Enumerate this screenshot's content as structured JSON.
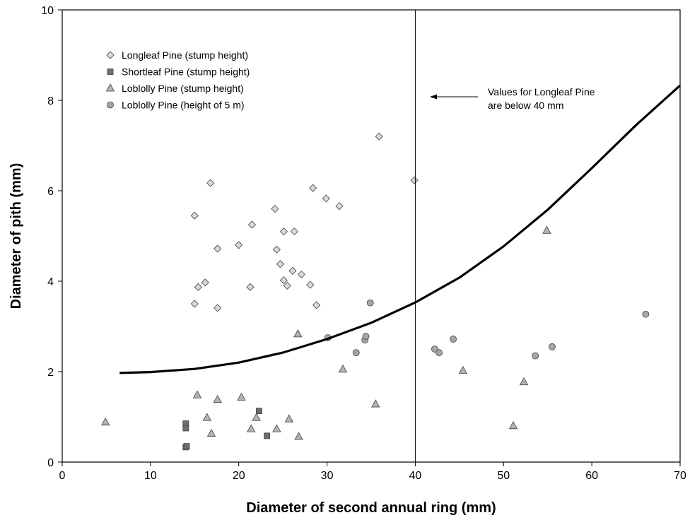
{
  "chart_data": {
    "type": "scatter",
    "title": "",
    "xlabel": "Diameter of second annual ring (mm)",
    "ylabel": "Diameter of pith (mm)",
    "xlim": [
      0,
      70
    ],
    "ylim": [
      0,
      10
    ],
    "xticks": [
      0,
      10,
      20,
      30,
      40,
      50,
      60,
      70
    ],
    "yticks": [
      0,
      2,
      4,
      6,
      8,
      10
    ],
    "grid": false,
    "legend_position": "top-left",
    "series": [
      {
        "name": "Longleaf Pine (stump height)",
        "marker": "diamond",
        "color": "#d9d9d9",
        "points": [
          [
            15,
            5.45
          ],
          [
            16.8,
            6.17
          ],
          [
            15.4,
            3.87
          ],
          [
            16.2,
            3.97
          ],
          [
            15,
            3.5
          ],
          [
            17.6,
            4.72
          ],
          [
            17.6,
            3.41
          ],
          [
            20,
            4.8
          ],
          [
            21.3,
            3.87
          ],
          [
            21.5,
            5.25
          ],
          [
            24.1,
            5.6
          ],
          [
            24.3,
            4.7
          ],
          [
            24.7,
            4.38
          ],
          [
            25.1,
            5.1
          ],
          [
            25.1,
            4.02
          ],
          [
            25.5,
            3.9
          ],
          [
            26.1,
            4.23
          ],
          [
            26.3,
            5.1
          ],
          [
            27.1,
            4.15
          ],
          [
            28.1,
            3.92
          ],
          [
            28.4,
            6.06
          ],
          [
            28.8,
            3.47
          ],
          [
            29.9,
            5.83
          ],
          [
            31.4,
            5.66
          ],
          [
            35.9,
            7.2
          ],
          [
            39.9,
            6.23
          ]
        ]
      },
      {
        "name": "Shortleaf Pine (stump height)",
        "marker": "square",
        "color": "#6e6e6e",
        "points": [
          [
            14,
            0.85
          ],
          [
            14,
            0.75
          ],
          [
            14,
            0.33
          ],
          [
            14.1,
            0.35
          ],
          [
            22.3,
            1.13
          ],
          [
            23.2,
            0.58
          ]
        ]
      },
      {
        "name": "Loblolly Pine (stump height)",
        "marker": "triangle",
        "color": "#b3b3b3",
        "points": [
          [
            4.9,
            0.88
          ],
          [
            15.3,
            1.48
          ],
          [
            16.4,
            0.98
          ],
          [
            16.9,
            0.63
          ],
          [
            17.6,
            1.38
          ],
          [
            20.3,
            1.43
          ],
          [
            21.4,
            0.73
          ],
          [
            22,
            0.98
          ],
          [
            24.3,
            0.73
          ],
          [
            25.7,
            0.95
          ],
          [
            26.7,
            2.83
          ],
          [
            26.8,
            0.56
          ],
          [
            31.8,
            2.05
          ],
          [
            35.5,
            1.28
          ],
          [
            45.4,
            2.02
          ],
          [
            51.1,
            0.8
          ],
          [
            52.3,
            1.77
          ],
          [
            54.9,
            5.12
          ]
        ]
      },
      {
        "name": "Loblolly Pine (height of 5 m)",
        "marker": "circle",
        "color": "#a6a6a6",
        "points": [
          [
            30.1,
            2.75
          ],
          [
            33.3,
            2.42
          ],
          [
            34.3,
            2.7
          ],
          [
            34.4,
            2.78
          ],
          [
            34.9,
            3.52
          ],
          [
            42.2,
            2.5
          ],
          [
            42.7,
            2.42
          ],
          [
            44.3,
            2.72
          ],
          [
            53.6,
            2.35
          ],
          [
            55.5,
            2.55
          ],
          [
            66.1,
            3.27
          ]
        ]
      }
    ],
    "trend_curve": {
      "points": [
        [
          6.5,
          1.97
        ],
        [
          10,
          1.99
        ],
        [
          15,
          2.06
        ],
        [
          20,
          2.2
        ],
        [
          25,
          2.42
        ],
        [
          30,
          2.72
        ],
        [
          35,
          3.08
        ],
        [
          40,
          3.53
        ],
        [
          45,
          4.08
        ],
        [
          50,
          4.77
        ],
        [
          55,
          5.58
        ],
        [
          60,
          6.5
        ],
        [
          65,
          7.45
        ],
        [
          70,
          8.33
        ]
      ]
    },
    "reference_line": {
      "x": 40
    },
    "annotation": {
      "lines": [
        "Values for Longleaf Pine",
        "are below 40 mm"
      ]
    }
  }
}
